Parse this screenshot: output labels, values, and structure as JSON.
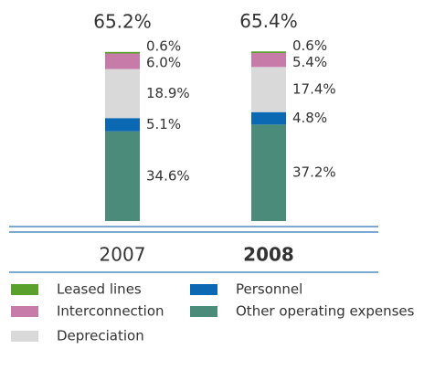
{
  "chart_data": {
    "type": "stacked_bar",
    "categories": [
      "2007",
      "2008"
    ],
    "totals": [
      65.2,
      65.4
    ],
    "total_labels": [
      "65.2%",
      "65.4%"
    ],
    "series": [
      {
        "name": "Other operating expenses",
        "color": "#4b8b79",
        "values": [
          34.6,
          37.2
        ],
        "value_labels": [
          "34.6%",
          "37.2%"
        ]
      },
      {
        "name": "Personnel",
        "color": "#0b69b4",
        "values": [
          5.1,
          4.8
        ],
        "value_labels": [
          "5.1%",
          "4.8%"
        ]
      },
      {
        "name": "Depreciation",
        "color": "#d9d9d9",
        "values": [
          18.9,
          17.4
        ],
        "value_labels": [
          "18.9%",
          "17.4%"
        ]
      },
      {
        "name": "Interconnection",
        "color": "#c77ba8",
        "values": [
          6.0,
          5.4
        ],
        "value_labels": [
          "6.0%",
          "5.4%"
        ]
      },
      {
        "name": "Leased lines",
        "color": "#5aa02c",
        "values": [
          0.6,
          0.6
        ],
        "value_labels": [
          "0.6%",
          "0.6%"
        ]
      }
    ]
  }
}
